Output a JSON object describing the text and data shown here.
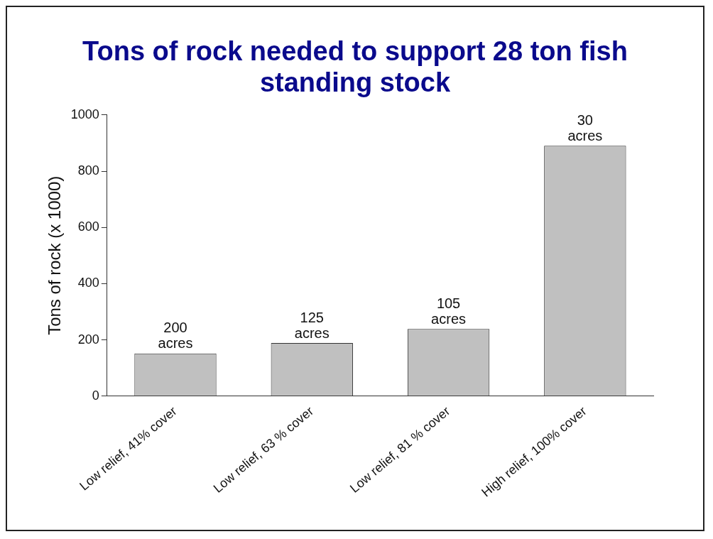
{
  "chart_data": {
    "type": "bar",
    "title": "Tons of rock needed to support 28 ton fish standing stock",
    "ylabel": "Tons of rock (x 1000)",
    "categories": [
      "Low relief, 41% cover",
      "Low relief, 63 % cover",
      "Low relief, 81 % cover",
      "High relief, 100% cover"
    ],
    "values": [
      152,
      189,
      239,
      890
    ],
    "color": "#c0c0c0",
    "annotations": [
      {
        "text": "200 acres",
        "x": "Low relief, 41% cover",
        "y": 152
      },
      {
        "text": "125 acres",
        "x": "Low relief, 63 % cover",
        "y": 189
      },
      {
        "text": "105 acres",
        "x": "Low relief, 81 % cover",
        "y": 239
      },
      {
        "text": "30 acres",
        "x": "High relief, 100% cover",
        "y": 890
      }
    ],
    "ylim": [
      0,
      1000
    ],
    "yticks": [
      0,
      200,
      400,
      600,
      800,
      1000
    ],
    "grid": false,
    "legend": false
  }
}
